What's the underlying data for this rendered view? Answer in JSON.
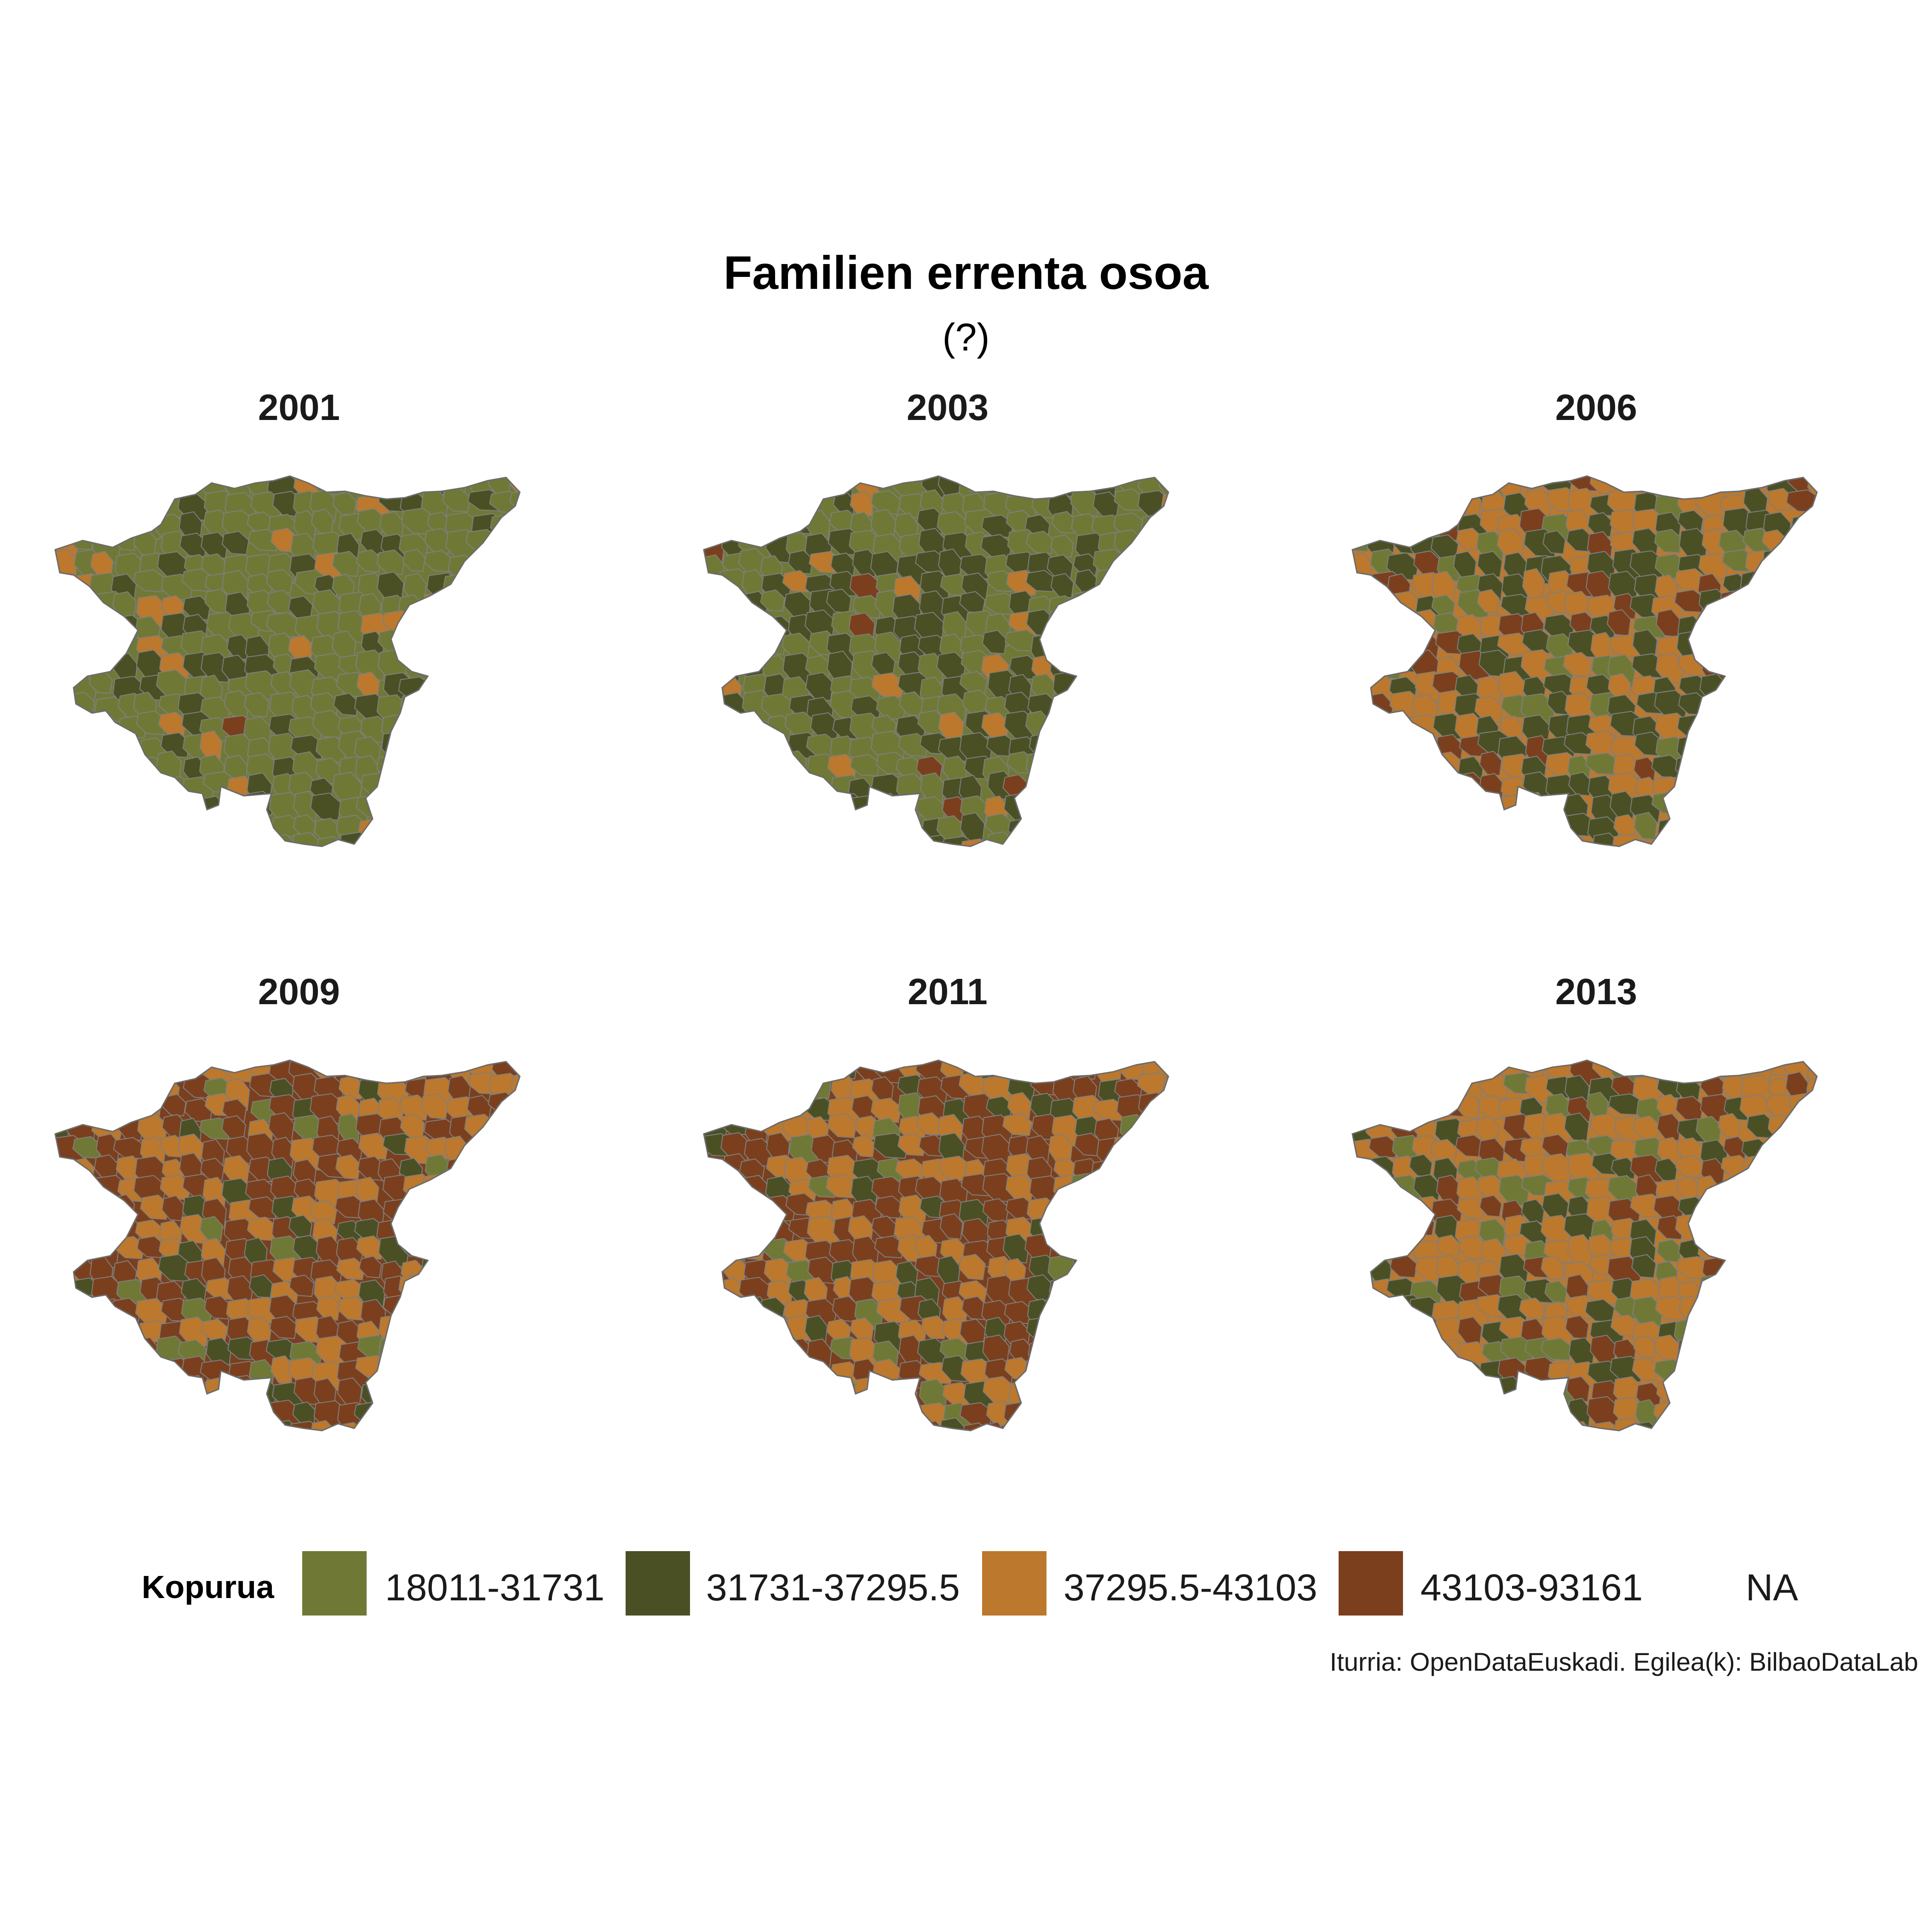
{
  "title": "Familien errenta osoa",
  "subtitle": "(?)",
  "panels": [
    {
      "year": "2001",
      "dominant": "c1"
    },
    {
      "year": "2003",
      "dominant": "c1"
    },
    {
      "year": "2006",
      "dominant": "c3"
    },
    {
      "year": "2009",
      "dominant": "c4"
    },
    {
      "year": "2011",
      "dominant": "c4"
    },
    {
      "year": "2013",
      "dominant": "c3"
    }
  ],
  "legend": {
    "title": "Kopurua",
    "items": [
      {
        "label": "18011-31731",
        "color": "#6f7935"
      },
      {
        "label": "31731-37295.5",
        "color": "#4a5024"
      },
      {
        "label": "37295.5-43103",
        "color": "#bc782c"
      },
      {
        "label": "43103-93161",
        "color": "#7b3f1d"
      },
      {
        "label": "NA",
        "color": "#ffffff"
      }
    ]
  },
  "caption": "Iturria: OpenDataEuskadi. Egilea(k): BilbaoDataLab"
}
